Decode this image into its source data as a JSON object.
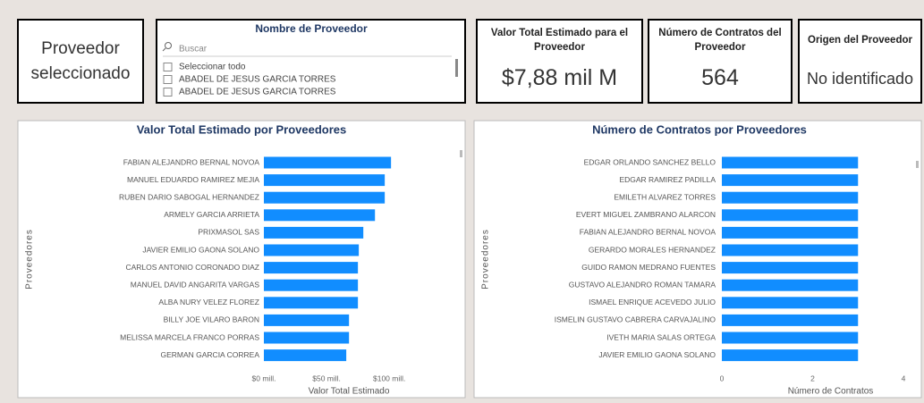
{
  "selected_provider_card": {
    "text": "Proveedor seleccionado"
  },
  "slicer": {
    "title": "Nombre de Proveedor",
    "search_placeholder": "Buscar",
    "items": [
      "Seleccionar todo",
      "ABADEL DE JESUS GARCIA TORRES",
      "ABADEL DE JESUS GARCIA TORRES"
    ]
  },
  "kpi_cards": [
    {
      "title": "Valor Total Estimado para el Proveedor",
      "value": "$7,88 mil M"
    },
    {
      "title": "Número de Contratos del Proveedor",
      "value": 564
    },
    {
      "title": "Origen del Proveedor",
      "value": "No identificado"
    }
  ],
  "chart_data": [
    {
      "type": "bar",
      "orientation": "horizontal",
      "title": "Valor Total Estimado por Proveedores",
      "y_label": "Proveedores",
      "x_label": "Valor Total Estimado",
      "categories": [
        "FABIAN ALEJANDRO BERNAL NOVOA",
        "MANUEL EDUARDO RAMIREZ MEJIA",
        "RUBEN DARIO SABOGAL HERNANDEZ",
        "ARMELY GARCIA ARRIETA",
        "PRIXMASOL SAS",
        "JAVIER EMILIO GAONA SOLANO",
        "CARLOS ANTONIO CORONADO DIAZ",
        "MANUEL DAVID ANGARITA VARGAS",
        "ALBA NURY VELEZ FLOREZ",
        "BILLY JOE VILARO BARON",
        "MELISSA MARCELA FRANCO PORRAS",
        "GERMAN GARCIA CORREA"
      ],
      "values": [
        101.4,
        96.4,
        96.4,
        88.6,
        79.3,
        75.7,
        75,
        75,
        75,
        67.9,
        67.9,
        65.7
      ],
      "color": "#118dff",
      "xlim": [
        0,
        107
      ],
      "xticks": [
        {
          "value": 0,
          "label": "$0 mill."
        },
        {
          "value": 50,
          "label": "$50 mill."
        },
        {
          "value": 100,
          "label": "$100 mill."
        }
      ],
      "grid": false
    },
    {
      "type": "bar",
      "orientation": "horizontal",
      "title": "Número de Contratos por Proveedores",
      "y_label": "Proveedores",
      "x_label": "Número de Contratos",
      "categories": [
        "EDGAR ORLANDO SANCHEZ BELLO",
        "EDGAR RAMIREZ PADILLA",
        "EMILETH ALVAREZ TORRES",
        "EVERT MIGUEL ZAMBRANO ALARCON",
        "FABIAN ALEJANDRO BERNAL NOVOA",
        "GERARDO MORALES HERNANDEZ",
        "GUIDO RAMON MEDRANO FUENTES",
        "GUSTAVO ALEJANDRO ROMAN TAMARA",
        "ISMAEL ENRIQUE ACEVEDO JULIO",
        "ISMELIN GUSTAVO CABRERA CARVAJALINO",
        "IVETH MARIA SALAS ORTEGA",
        "JAVIER EMILIO GAONA SOLANO"
      ],
      "values": [
        3,
        3,
        3,
        3,
        3,
        3,
        3,
        3,
        3,
        3,
        3,
        3
      ],
      "color": "#118dff",
      "xlim": [
        0,
        4
      ],
      "xticks": [
        0,
        2,
        4
      ],
      "grid": false
    }
  ]
}
